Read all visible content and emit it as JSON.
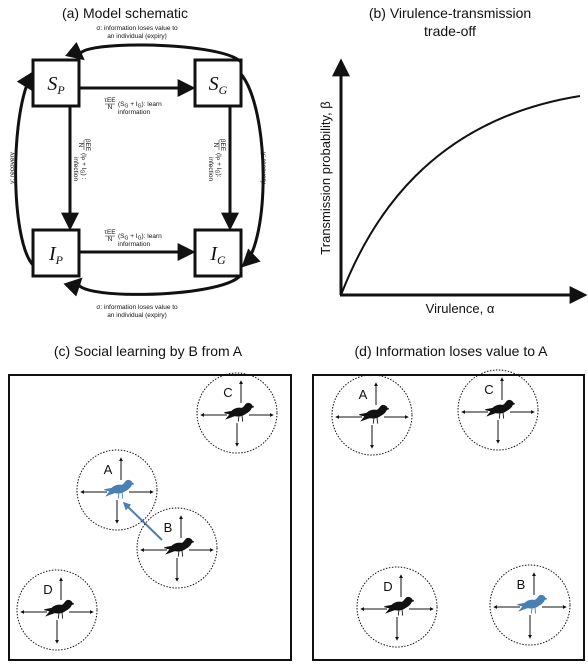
{
  "schematic": {
    "title": "(a) Model schematic",
    "nodes": [
      {
        "symbol": "S",
        "subscript": "P"
      },
      {
        "symbol": "S",
        "subscript": "G"
      },
      {
        "symbol": "I",
        "subscript": "P"
      },
      {
        "symbol": "I",
        "subscript": "G"
      }
    ],
    "expiry_top": {
      "line1": "σ: information loses value to",
      "line2": "an individual (expiry)"
    },
    "expiry_bottom": {
      "line1": "σ: information loses value to",
      "line2": "an individual (expiry)"
    },
    "recovery_left": "γ: recovery",
    "recovery_right": "γ: recovery",
    "learn_top": {
      "numerator": "τEE",
      "denominator": "N",
      "expression": [
        {
          "text": "(S"
        },
        {
          "sub": "G"
        },
        {
          "text": " + I"
        },
        {
          "sub": "G"
        },
        {
          "text": "): learn"
        }
      ],
      "line2": "information"
    },
    "learn_bottom": {
      "numerator": "τEE",
      "denominator": "N",
      "expression": [
        {
          "text": "(S"
        },
        {
          "sub": "G"
        },
        {
          "text": " + I"
        },
        {
          "sub": "G"
        },
        {
          "text": "): learn"
        }
      ],
      "line2": "information"
    },
    "infection_left": {
      "numerator": "βEE",
      "denominator": "N",
      "expression": [
        {
          "text": "(I"
        },
        {
          "sub": "P"
        },
        {
          "text": " + I"
        },
        {
          "sub": "G"
        },
        {
          "text": ") :"
        }
      ],
      "line2": "infection"
    },
    "infection_right": {
      "numerator": "βEE",
      "denominator": "N",
      "expression": [
        {
          "text": "(I"
        },
        {
          "sub": "P"
        },
        {
          "text": " + I"
        },
        {
          "sub": "G"
        },
        {
          "text": "):"
        }
      ],
      "line2": "infection"
    }
  },
  "tradeoff": {
    "title": [
      "(b) Virulence-transmission",
      "trade-off"
    ],
    "y_label": "Transmission probability, β",
    "x_label": "Virulence, α"
  },
  "social_learning": {
    "title": "(c) Social learning by B from A",
    "birds": [
      "A",
      "B",
      "C",
      "D"
    ]
  },
  "information_loss": {
    "title": "(d) Information loses value to A",
    "birds": [
      "A",
      "C",
      "D",
      "B"
    ]
  }
}
